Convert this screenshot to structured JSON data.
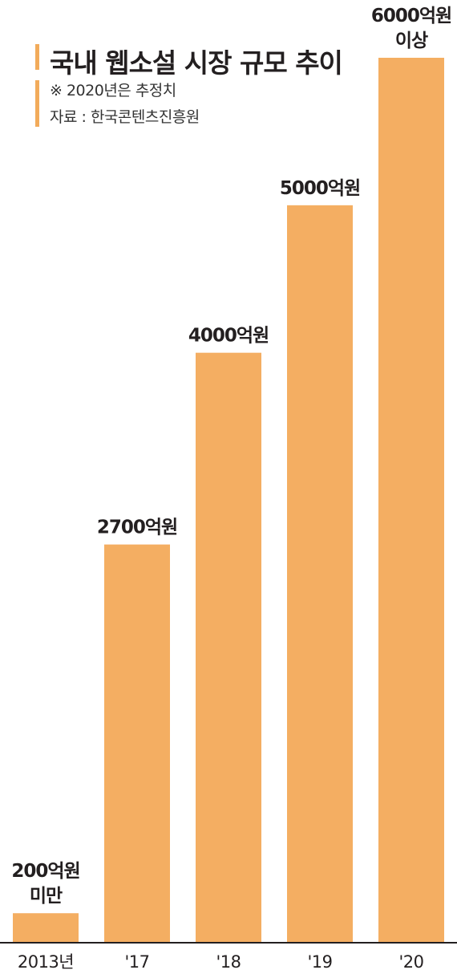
{
  "title": "국내 웹소설 시장 규모 추이",
  "note": "※ 2020년은 추정치",
  "source": "자료 : 한국콘텐츠진흥원",
  "chart_data": {
    "type": "bar",
    "categories": [
      "2013년",
      "'17",
      "'18",
      "'19",
      "'20"
    ],
    "values": [
      200,
      2700,
      4000,
      5000,
      6000
    ],
    "value_labels": [
      [
        "200억원",
        "미만"
      ],
      [
        "2700억원"
      ],
      [
        "4000억원"
      ],
      [
        "5000억원"
      ],
      [
        "6000억원",
        "이상"
      ]
    ],
    "unit": "억원",
    "ylim": [
      0,
      6000
    ],
    "grid": false,
    "legend": "none",
    "bar_color": "#F4AE62",
    "axis_color": "#231F20"
  }
}
